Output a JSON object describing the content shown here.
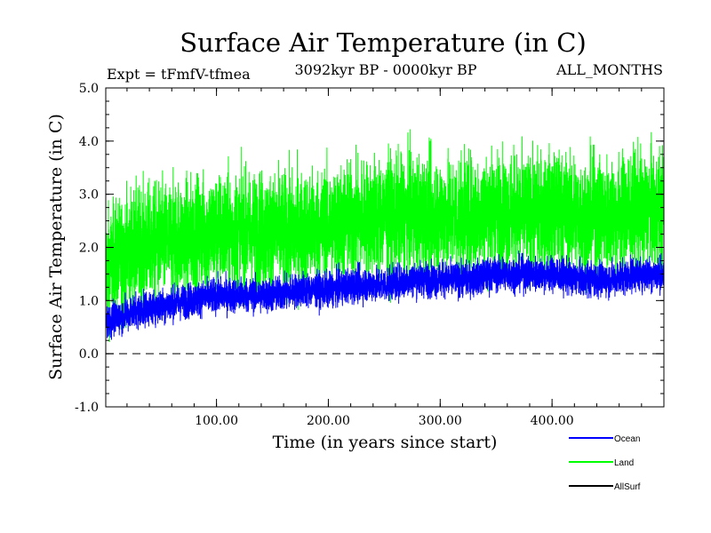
{
  "chart_data": {
    "type": "line",
    "title": "Surface Air Temperature (in C)",
    "subtitle_left": "Expt = tFmfV-tfmea",
    "subtitle_center": "3092kyr BP - 0000kyr BP",
    "subtitle_right": "ALL_MONTHS",
    "xlabel": "Time (in years since start)",
    "ylabel": "Surface Air Temperature (in C)",
    "xlim": [
      1,
      500
    ],
    "ylim": [
      -1.0,
      5.0
    ],
    "y_ticks": [
      {
        "value": -1.0,
        "label": "-1.0"
      },
      {
        "value": 0.0,
        "label": "0.0"
      },
      {
        "value": 1.0,
        "label": "1.0"
      },
      {
        "value": 2.0,
        "label": "2.0"
      },
      {
        "value": 3.0,
        "label": "3.0"
      },
      {
        "value": 4.0,
        "label": "4.0"
      },
      {
        "value": 5.0,
        "label": "5.0"
      }
    ],
    "x_ticks": [
      {
        "value": 100,
        "label": "100.00"
      },
      {
        "value": 200,
        "label": "200.00"
      },
      {
        "value": 300,
        "label": "300.00"
      },
      {
        "value": 400,
        "label": "400.00"
      }
    ],
    "reference_line": {
      "value": 0.0,
      "style": "dashed"
    },
    "legend_position": "bottom-right",
    "series": [
      {
        "name": "Land",
        "color": "#00ff00",
        "x": [
          1,
          25,
          50,
          75,
          100,
          125,
          150,
          175,
          200,
          225,
          250,
          275,
          300,
          325,
          350,
          375,
          400,
          425,
          450,
          475,
          500
        ],
        "values": [
          1.6,
          2.0,
          2.1,
          2.2,
          2.3,
          2.3,
          2.3,
          2.3,
          2.4,
          2.5,
          2.6,
          2.6,
          2.6,
          2.6,
          2.7,
          2.6,
          2.7,
          2.6,
          2.6,
          2.7,
          2.7
        ],
        "spread": 1.2
      },
      {
        "name": "Ocean",
        "color": "#0000ff",
        "x": [
          1,
          25,
          50,
          75,
          100,
          125,
          150,
          175,
          200,
          225,
          250,
          275,
          300,
          325,
          350,
          375,
          400,
          425,
          450,
          475,
          500
        ],
        "values": [
          0.6,
          0.8,
          0.9,
          1.0,
          1.1,
          1.1,
          1.1,
          1.2,
          1.2,
          1.3,
          1.3,
          1.4,
          1.4,
          1.4,
          1.5,
          1.5,
          1.5,
          1.4,
          1.4,
          1.5,
          1.5
        ],
        "spread": 0.35
      },
      {
        "name": "AllSurf",
        "color": "#000000",
        "x": [],
        "values": [],
        "spread": 0
      }
    ]
  }
}
